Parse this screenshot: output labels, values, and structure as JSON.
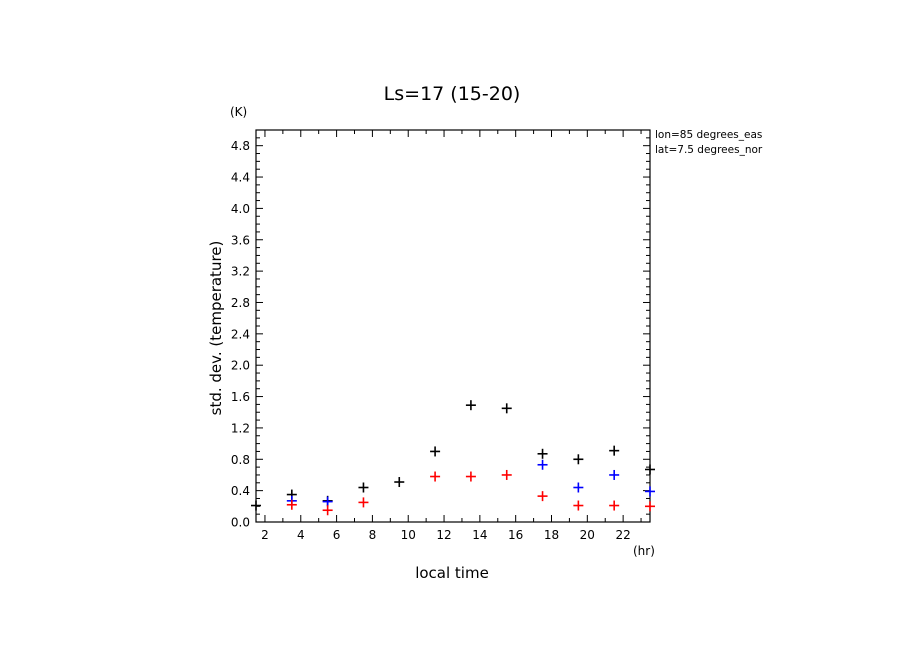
{
  "chart_data": {
    "type": "scatter",
    "title": "Ls=17 (15-20)",
    "xlabel": "local time",
    "ylabel": "std. dev. (temperature)",
    "x_unit": "(hr)",
    "y_unit": "(K)",
    "xlim": [
      1.5,
      23.5
    ],
    "ylim": [
      0.0,
      5.0
    ],
    "x_ticks": [
      "2",
      "4",
      "6",
      "8",
      "10",
      "12",
      "14",
      "16",
      "18",
      "20",
      "22"
    ],
    "y_ticks": [
      "0.0",
      "0.4",
      "0.8",
      "1.2",
      "1.6",
      "2.0",
      "2.4",
      "2.8",
      "3.2",
      "3.6",
      "4.0",
      "4.4",
      "4.8"
    ],
    "annotations": [
      "lon=85 degrees_eas",
      "lat=7.5 degrees_nor"
    ],
    "series": [
      {
        "color": "#000000",
        "points": [
          [
            1.5,
            0.21
          ],
          [
            3.5,
            0.35
          ],
          [
            5.5,
            0.27
          ],
          [
            7.5,
            0.44
          ],
          [
            9.5,
            0.51
          ],
          [
            11.5,
            0.9
          ],
          [
            13.5,
            1.49
          ],
          [
            15.5,
            1.45
          ],
          [
            17.5,
            0.87
          ],
          [
            19.5,
            0.8
          ],
          [
            21.5,
            0.91
          ],
          [
            23.5,
            0.67
          ]
        ]
      },
      {
        "color": "#0000ff",
        "points": [
          [
            3.5,
            0.27
          ],
          [
            5.5,
            0.26
          ],
          [
            17.5,
            0.73
          ],
          [
            19.5,
            0.44
          ],
          [
            21.5,
            0.6
          ],
          [
            23.5,
            0.39
          ]
        ]
      },
      {
        "color": "#ff0000",
        "points": [
          [
            3.5,
            0.22
          ],
          [
            5.5,
            0.15
          ],
          [
            7.5,
            0.25
          ],
          [
            11.5,
            0.58
          ],
          [
            13.5,
            0.58
          ],
          [
            15.5,
            0.6
          ],
          [
            17.5,
            0.33
          ],
          [
            19.5,
            0.21
          ],
          [
            21.5,
            0.21
          ],
          [
            23.5,
            0.2
          ]
        ]
      }
    ]
  }
}
